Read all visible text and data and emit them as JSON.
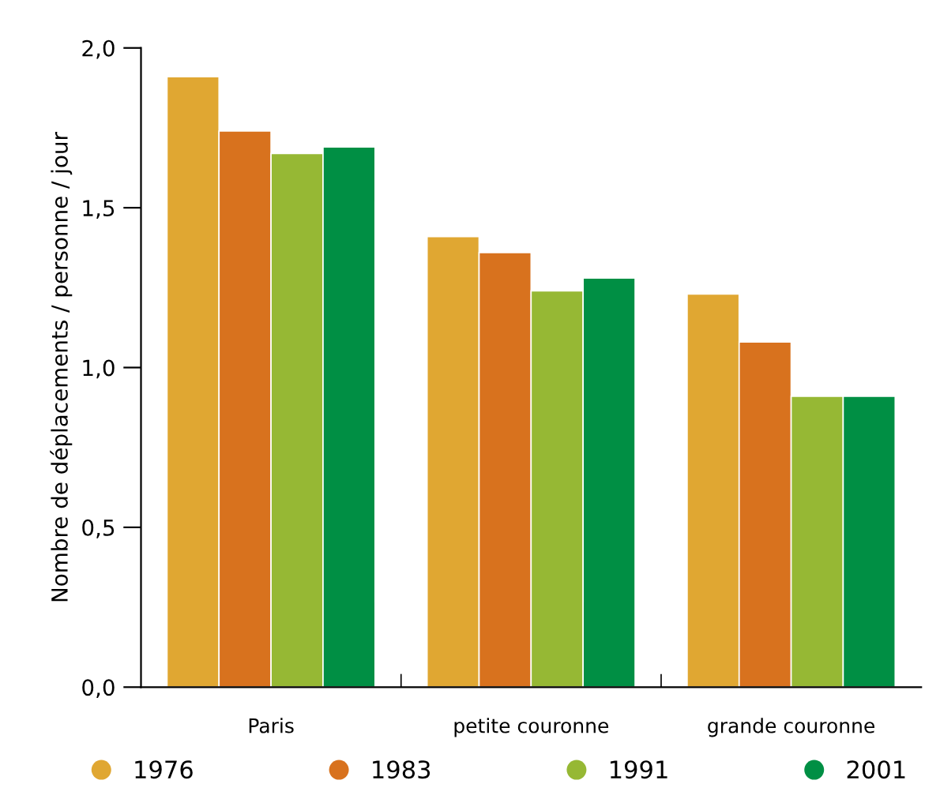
{
  "chart_data": {
    "type": "bar",
    "ylabel": "Nombre de déplacements / personne / jour",
    "categories": [
      "Paris",
      "petite couronne",
      "grande couronne"
    ],
    "series": [
      {
        "name": "1976",
        "color": "#e0a732",
        "values": [
          1.91,
          1.41,
          1.23
        ]
      },
      {
        "name": "1983",
        "color": "#d8721e",
        "values": [
          1.74,
          1.36,
          1.08
        ]
      },
      {
        "name": "1991",
        "color": "#96b834",
        "values": [
          1.67,
          1.24,
          0.91
        ]
      },
      {
        "name": "2001",
        "color": "#008f44",
        "values": [
          1.69,
          1.28,
          0.91
        ]
      }
    ],
    "ylim": [
      0,
      2
    ],
    "yticks": [
      {
        "value": 0,
        "label": "0,0"
      },
      {
        "value": 0.5,
        "label": "0,5"
      },
      {
        "value": 1,
        "label": "1,0"
      },
      {
        "value": 1.5,
        "label": "1,5"
      },
      {
        "value": 2,
        "label": "2,0"
      }
    ],
    "grid": false,
    "legend": "bottom"
  }
}
